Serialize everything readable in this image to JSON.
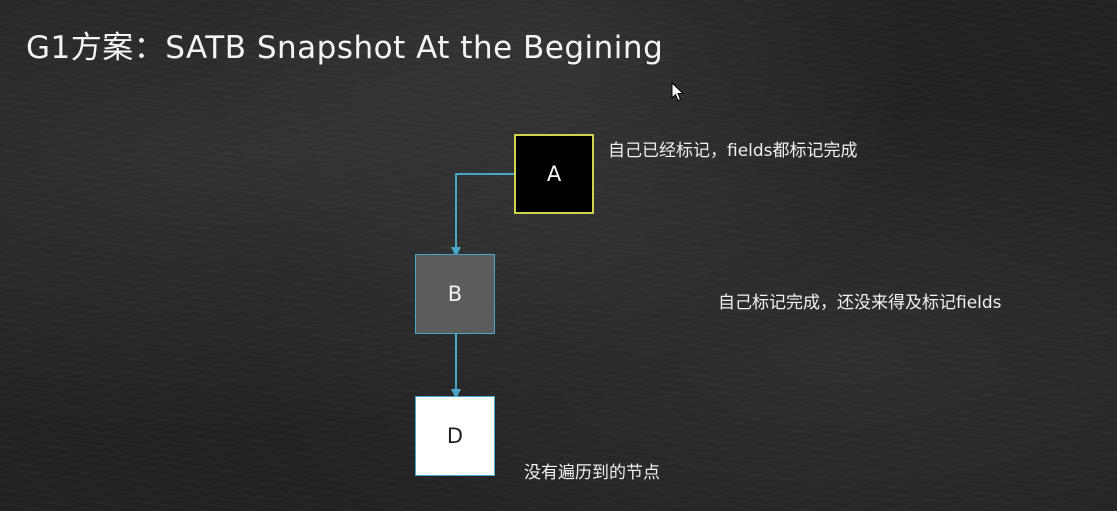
{
  "slide": {
    "title": "G1方案：SATB Snapshot At the Begining"
  },
  "nodes": {
    "a": {
      "label": "A",
      "note": "自己已经标记，fields都标记完成"
    },
    "b": {
      "label": "B",
      "note": "自己标记完成，还没来得及标记fields"
    },
    "d": {
      "label": "D",
      "note": "没有遍历到的节点"
    }
  },
  "colors": {
    "arrow": "#48a7c7",
    "node_a_border": "#cfd34f",
    "node_b_fill": "#5c5c5c",
    "node_d_fill": "#ffffff"
  },
  "icons": {
    "cursor": "mouse-pointer-icon"
  }
}
